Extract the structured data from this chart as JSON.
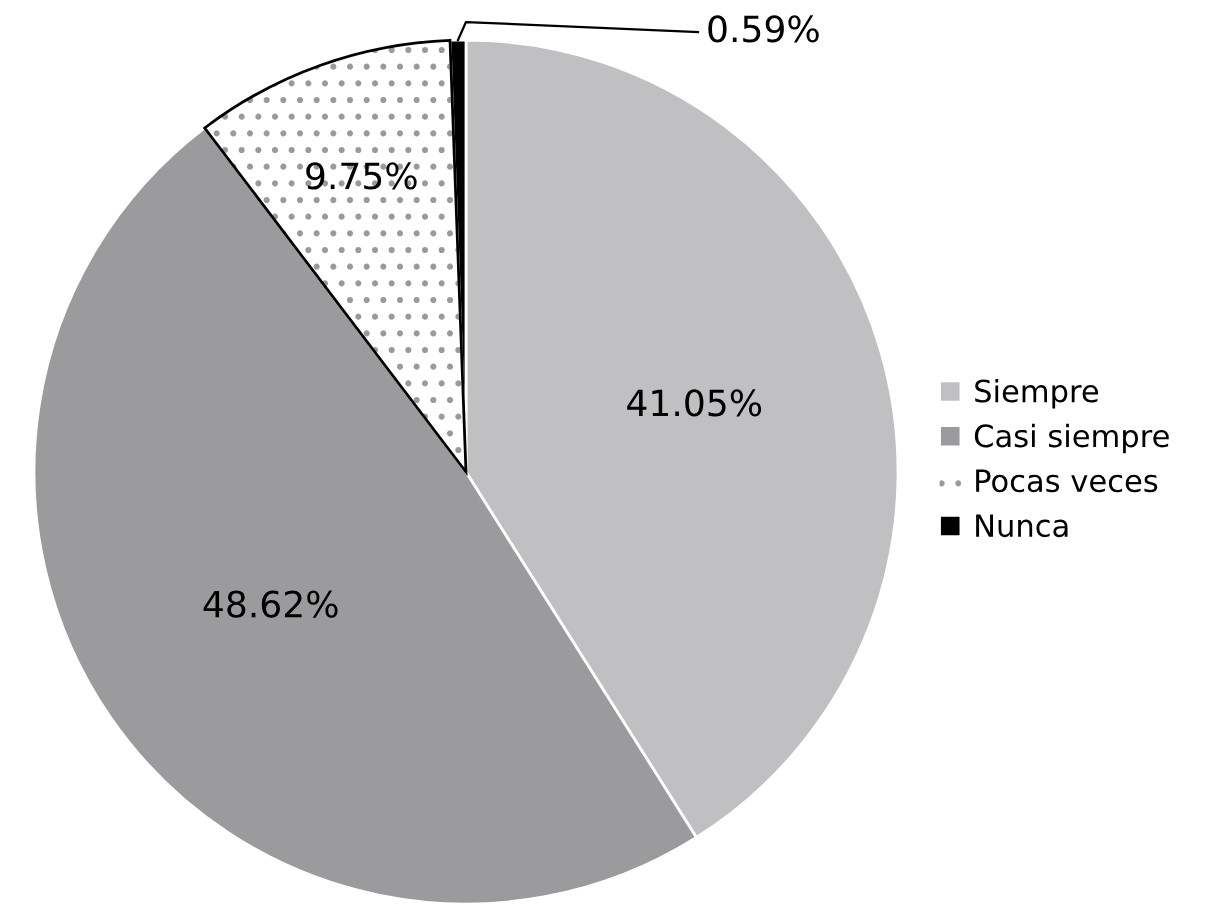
{
  "chart_data": {
    "type": "pie",
    "categories": [
      "Siempre",
      "Casi siempre",
      "Pocas veces",
      "Nunca"
    ],
    "values": [
      41.05,
      48.62,
      9.75,
      0.59
    ],
    "colors": [
      "#c0c0c2",
      "#9b9b9d",
      "#ffffff",
      "#000000"
    ],
    "value_labels": [
      "41.05%",
      "48.62%",
      "9.75%",
      "0.59%"
    ],
    "legend": "right"
  }
}
